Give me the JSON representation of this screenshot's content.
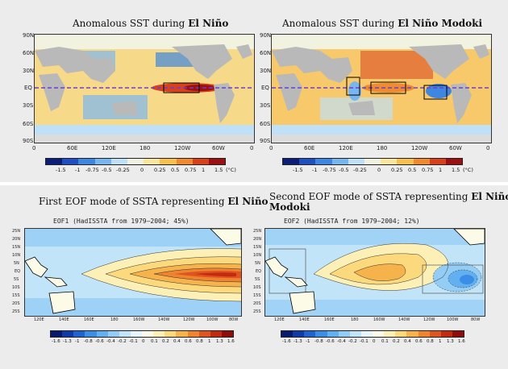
{
  "panels": {
    "p1": {
      "title_prefix": "Anomalous SST during ",
      "title_bold": "El Niño",
      "lat_labels": [
        "90N",
        "60N",
        "30N",
        "EQ",
        "30S",
        "60S",
        "90S"
      ],
      "lon_labels": [
        "0",
        "60E",
        "120E",
        "180",
        "120W",
        "60W",
        "0"
      ],
      "cbar_ticks": [
        "-1.5",
        "-1",
        "-0.75",
        "-0.5",
        "-0.25",
        "0",
        "0.25",
        "0.5",
        "0.75",
        "1",
        "1.5",
        "(°C)"
      ]
    },
    "p2": {
      "title_prefix": "Anomalous SST during ",
      "title_bold": "El Niño Modoki",
      "lat_labels": [
        "90N",
        "60N",
        "30N",
        "EQ",
        "30S",
        "60S",
        "90S"
      ],
      "lon_labels": [
        "0",
        "60E",
        "120E",
        "180",
        "120W",
        "60W",
        "0"
      ],
      "cbar_ticks": [
        "-1.5",
        "-1",
        "-0.75",
        "-0.5",
        "-0.25",
        "0",
        "0.25",
        "0.5",
        "0.75",
        "1",
        "1.5",
        "(°C)"
      ]
    },
    "p3": {
      "title_prefix": "First EOF mode of SSTA representing ",
      "title_bold": "El Niño",
      "eof_label": "EOF1  (HadISSTA  from  1979–2004; 45%)",
      "lat_labels": [
        "25N",
        "20N",
        "15N",
        "10N",
        "5N",
        "EQ",
        "5S",
        "10S",
        "15S",
        "20S",
        "25S"
      ],
      "lon_labels": [
        "120E",
        "140E",
        "160E",
        "180",
        "160W",
        "140W",
        "120W",
        "100W",
        "80W"
      ],
      "cbar_ticks": [
        "-1.6",
        "-1.3",
        "-1",
        "-0.8",
        "-0.6",
        "-0.4",
        "-0.2",
        "-0.1",
        "0",
        "0.1",
        "0.2",
        "0.4",
        "0.6",
        "0.8",
        "1",
        "1.3",
        "1.6"
      ]
    },
    "p4": {
      "title_prefix": "Second EOF mode of SSTA representing ",
      "title_bold": "El Niño",
      "title_line2": "Modoki",
      "eof_label": "EOF2  (HadISSTA  from  1979–2004; 12%)",
      "lat_labels": [
        "25N",
        "20N",
        "15N",
        "10N",
        "5N",
        "EQ",
        "5S",
        "10S",
        "15S",
        "20S",
        "25S"
      ],
      "lon_labels": [
        "120E",
        "140E",
        "160E",
        "180",
        "160W",
        "140W",
        "120W",
        "100W",
        "80W"
      ],
      "cbar_ticks": [
        "-1.6",
        "-1.3",
        "-1",
        "-0.8",
        "-0.6",
        "-0.4",
        "-0.2",
        "-0.1",
        "0",
        "0.1",
        "0.2",
        "0.4",
        "0.6",
        "0.8",
        "1",
        "1.3",
        "1.6"
      ]
    }
  },
  "colors": {
    "sst_scale": [
      "#0b1f7a",
      "#1f4fc0",
      "#3f86e0",
      "#79b6f0",
      "#bfe0f6",
      "#f2f2e0",
      "#fbe6a0",
      "#f7c14f",
      "#f08a2e",
      "#d9401c",
      "#9b1010"
    ],
    "eof_scale": [
      "#071a6b",
      "#0f3aa8",
      "#1e63d0",
      "#3b8ee6",
      "#62b0f0",
      "#93ccf5",
      "#c2e4f8",
      "#e6f4fb",
      "#fbfbe8",
      "#fdf0b6",
      "#fbd97c",
      "#f6b24b",
      "#ee8430",
      "#df5520",
      "#c22a12",
      "#8f0c0c"
    ],
    "land": "#b9b9b9",
    "equator": "#6a3fd0"
  }
}
